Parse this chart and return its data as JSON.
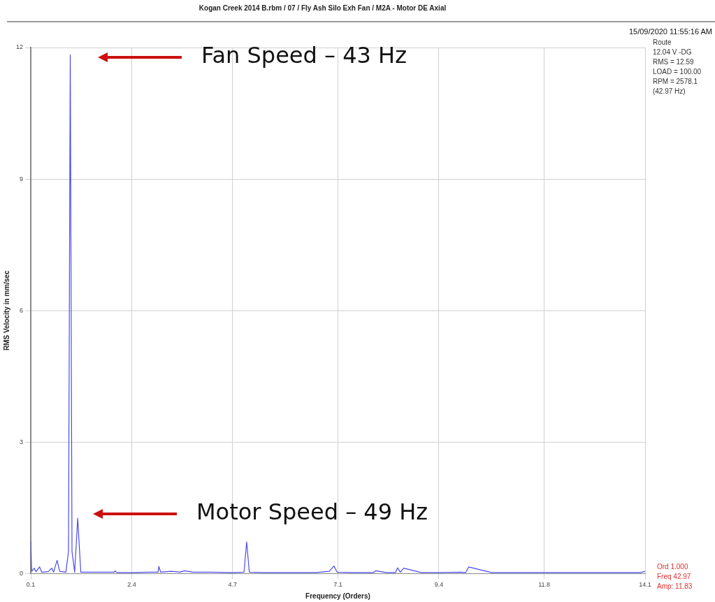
{
  "chart_data": {
    "type": "line",
    "title": "Kogan Creek 2014 B.rbm / 07 / Fly Ash Silo Exh Fan / M2A - Motor DE Axial",
    "xlabel": "Frequency (Orders)",
    "ylabel": "RMS Velocity in mm/sec",
    "x": [
      0.1,
      0.12,
      0.18,
      0.22,
      0.3,
      0.35,
      0.5,
      0.58,
      0.62,
      0.7,
      0.76,
      0.9,
      0.96,
      1.0,
      1.04,
      1.1,
      1.17,
      1.24,
      1.4,
      1.7,
      2.0,
      2.02,
      2.06,
      2.4,
      2.8,
      3.0,
      3.02,
      3.06,
      3.3,
      3.5,
      3.6,
      3.8,
      4.2,
      4.7,
      4.96,
      5.02,
      5.08,
      5.4,
      6.0,
      6.6,
      6.9,
      7.01,
      7.08,
      7.5,
      7.91,
      7.96,
      8.2,
      8.41,
      8.46,
      8.52,
      8.6,
      9.0,
      9.4,
      9.9,
      10.01,
      10.08,
      10.6,
      11.2,
      11.8,
      12.6,
      13.4,
      14.0,
      14.1
    ],
    "series": [
      {
        "color": "#4a4af0",
        "values": [
          0.75,
          0.05,
          0.12,
          0.04,
          0.15,
          0.03,
          0.04,
          0.12,
          0.03,
          0.3,
          0.05,
          0.03,
          0.5,
          11.83,
          0.5,
          0.03,
          1.26,
          0.03,
          0.03,
          0.03,
          0.03,
          0.06,
          0.02,
          0.02,
          0.03,
          0.03,
          0.16,
          0.03,
          0.05,
          0.03,
          0.06,
          0.03,
          0.03,
          0.02,
          0.03,
          0.72,
          0.03,
          0.02,
          0.02,
          0.02,
          0.05,
          0.17,
          0.03,
          0.02,
          0.02,
          0.06,
          0.02,
          0.02,
          0.13,
          0.03,
          0.12,
          0.02,
          0.02,
          0.03,
          0.02,
          0.15,
          0.02,
          0.02,
          0.02,
          0.02,
          0.02,
          0.02,
          0.05
        ]
      }
    ],
    "xlim": [
      0.1,
      14.1
    ],
    "ylim": [
      0,
      12
    ],
    "xticks": [
      0.1,
      2.4,
      4.7,
      7.1,
      9.4,
      11.8,
      14.1
    ],
    "yticks": [
      0,
      3,
      6,
      9,
      12
    ],
    "grid": true,
    "annotations": [
      "Fan Speed – 43 Hz",
      "Motor Speed – 49 Hz",
      "15/09/2020 11:55:16 AM",
      "Route",
      "12.04 V -DG",
      "RMS = 12.59",
      "LOAD = 100.00",
      "RPM = 2578.1",
      "(42.97 Hz)",
      "Ord 1.000",
      "Freq 42.97",
      "Amp: 11.83"
    ]
  }
}
